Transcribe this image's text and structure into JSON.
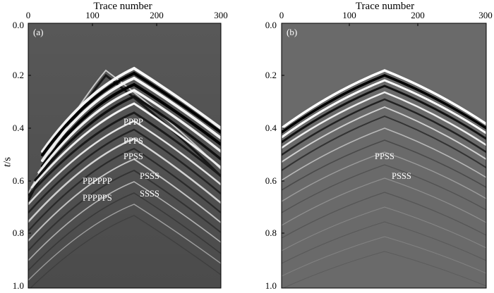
{
  "figure": {
    "x_axis_title": "Trace number",
    "y_axis_label_italic": "t",
    "y_axis_label_unit": "/s",
    "x_ticks": [
      "0",
      "100",
      "200",
      "300"
    ],
    "y_ticks": [
      "0.0",
      "0.2",
      "0.4",
      "0.6",
      "0.8",
      "1.0"
    ],
    "x_range": [
      0,
      300
    ],
    "y_range": [
      0.0,
      1.0
    ]
  },
  "panel_a": {
    "tag": "(a)",
    "background": "#5a5a5a",
    "labels": [
      "PPPP",
      "PPPS",
      "PPSS",
      "PSSS",
      "SSSS",
      "PPPPPP",
      "PPPPPS"
    ]
  },
  "panel_b": {
    "tag": "(b)",
    "background": "#6c6c6c",
    "labels": [
      "PPSS",
      "PSSS"
    ]
  },
  "colors": {
    "event_white": "#ffffff",
    "event_black": "#111111",
    "frame": "#000000"
  }
}
